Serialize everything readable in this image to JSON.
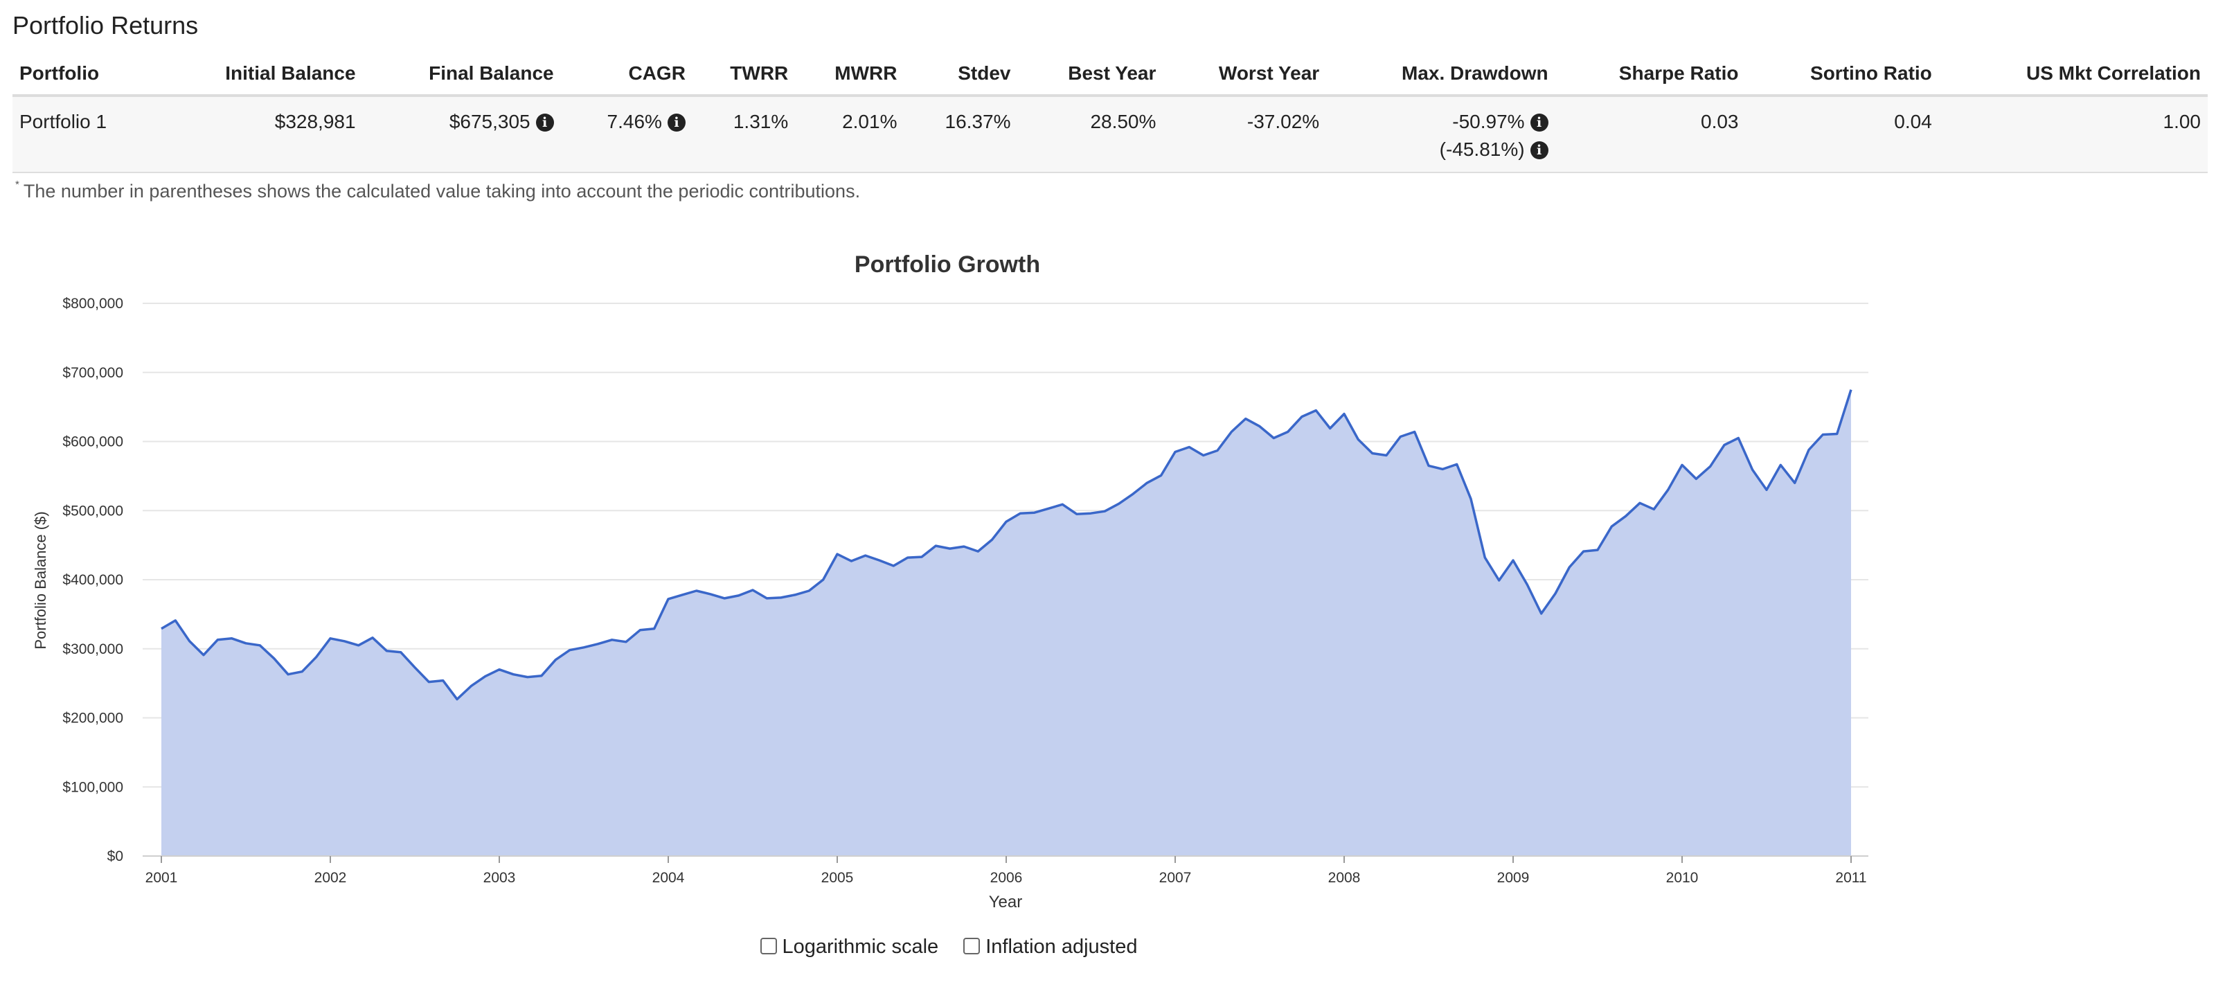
{
  "section_title": "Portfolio Returns",
  "table": {
    "headers": [
      "Portfolio",
      "Initial Balance",
      "Final Balance",
      "CAGR",
      "TWRR",
      "MWRR",
      "Stdev",
      "Best Year",
      "Worst Year",
      "Max. Drawdown",
      "Sharpe Ratio",
      "Sortino Ratio",
      "US Mkt Correlation"
    ],
    "row": {
      "portfolio": "Portfolio 1",
      "initial_balance": "$328,981",
      "final_balance": "$675,305",
      "cagr": "7.46%",
      "twrr": "1.31%",
      "mwrr": "2.01%",
      "stdev": "16.37%",
      "best_year": "28.50%",
      "worst_year": "-37.02%",
      "max_drawdown": "-50.97%",
      "max_drawdown_contrib": "(-45.81%)",
      "sharpe": "0.03",
      "sortino": "0.04",
      "us_mkt_corr": "1.00"
    },
    "info_icon": "info-circle-icon"
  },
  "footnote": {
    "marker": "*",
    "text": "The number in parentheses shows the calculated value taking into account the periodic contributions."
  },
  "chart_data": {
    "type": "area",
    "title": "Portfolio Growth",
    "xlabel": "Year",
    "ylabel": "Portfolio Balance ($)",
    "xlim": [
      2001,
      2011
    ],
    "ylim": [
      0,
      800000
    ],
    "x_ticks": [
      "2001",
      "2002",
      "2003",
      "2004",
      "2005",
      "2006",
      "2007",
      "2008",
      "2009",
      "2010",
      "2011"
    ],
    "y_ticks": [
      "$0",
      "$100,000",
      "$200,000",
      "$300,000",
      "$400,000",
      "$500,000",
      "$600,000",
      "$700,000",
      "$800,000"
    ],
    "grid": true,
    "series": [
      {
        "line_color": "#3a67c9",
        "fill_color": "#c4d0ef",
        "x_start": 2001.0,
        "x_step_months": 1,
        "values": [
          329000,
          341000,
          311000,
          291000,
          313000,
          315000,
          308000,
          305000,
          286000,
          263000,
          267000,
          288000,
          315000,
          311000,
          305000,
          316000,
          297000,
          295000,
          273000,
          252000,
          254000,
          227000,
          246000,
          260000,
          270000,
          263000,
          259000,
          261000,
          284000,
          298000,
          302000,
          307000,
          313000,
          310000,
          327000,
          329000,
          372000,
          378000,
          384000,
          379000,
          373000,
          377000,
          385000,
          373000,
          374000,
          378000,
          384000,
          400000,
          437000,
          427000,
          435000,
          428000,
          420000,
          432000,
          433000,
          449000,
          445000,
          448000,
          441000,
          458000,
          484000,
          496000,
          497000,
          503000,
          509000,
          495000,
          496000,
          499000,
          510000,
          524000,
          540000,
          551000,
          585000,
          592000,
          580000,
          587000,
          614000,
          633000,
          622000,
          605000,
          614000,
          636000,
          645000,
          619000,
          640000,
          603000,
          583000,
          580000,
          607000,
          614000,
          565000,
          560000,
          567000,
          517000,
          432000,
          399000,
          428000,
          393000,
          351000,
          380000,
          418000,
          441000,
          443000,
          477000,
          492000,
          511000,
          502000,
          530000,
          566000,
          546000,
          564000,
          595000,
          605000,
          559000,
          530000,
          566000,
          540000,
          588000,
          610000,
          611000,
          675000
        ]
      }
    ]
  },
  "controls": {
    "log_scale_label": "Logarithmic scale",
    "inflation_label": "Inflation adjusted",
    "log_scale_checked": false,
    "inflation_checked": false
  }
}
